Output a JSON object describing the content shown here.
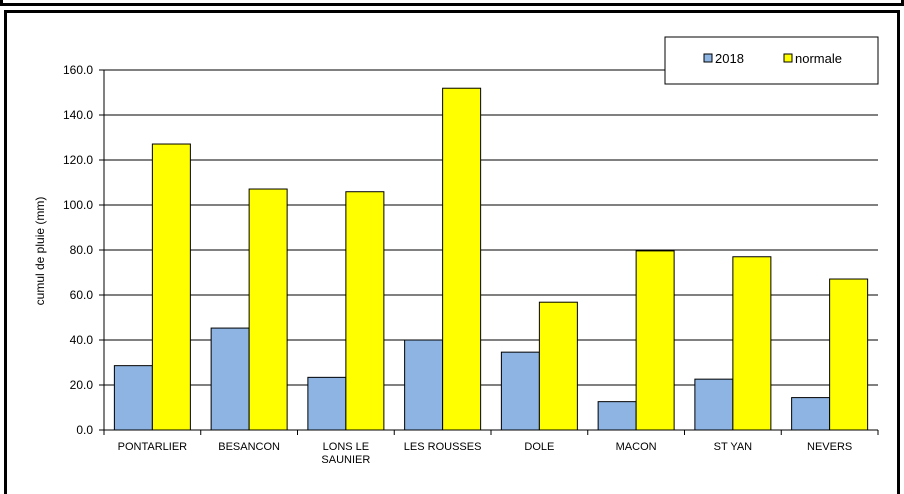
{
  "chart_data": {
    "type": "bar",
    "categories": [
      "PONTARLIER",
      "BESANCON",
      "LONS LE SAUNIER",
      "LES ROUSSES",
      "DOLE",
      "MACON",
      "ST YAN",
      "NEVERS"
    ],
    "category_lines": [
      [
        "PONTARLIER"
      ],
      [
        "BESANCON"
      ],
      [
        "LONS LE",
        "SAUNIER"
      ],
      [
        "LES ROUSSES"
      ],
      [
        "DOLE"
      ],
      [
        "MACON"
      ],
      [
        "ST YAN"
      ],
      [
        "NEVERS"
      ]
    ],
    "series": [
      {
        "name": "2018",
        "color": "#8DB4E2",
        "values": [
          28.6,
          45.3,
          23.4,
          40.0,
          34.6,
          12.6,
          22.6,
          14.4
        ]
      },
      {
        "name": "normale",
        "color": "#FFFF00",
        "values": [
          127.1,
          107.1,
          105.9,
          151.9,
          56.8,
          79.6,
          77.0,
          67.1
        ]
      }
    ],
    "title": "",
    "xlabel": "",
    "ylabel": "cumul de pluie (mm)",
    "ylim": [
      0,
      160
    ],
    "yticks": [
      "0.0",
      "20.0",
      "40.0",
      "60.0",
      "80.0",
      "100.0",
      "120.0",
      "140.0",
      "160.0"
    ],
    "grid": true,
    "legend_position": "top-right"
  }
}
